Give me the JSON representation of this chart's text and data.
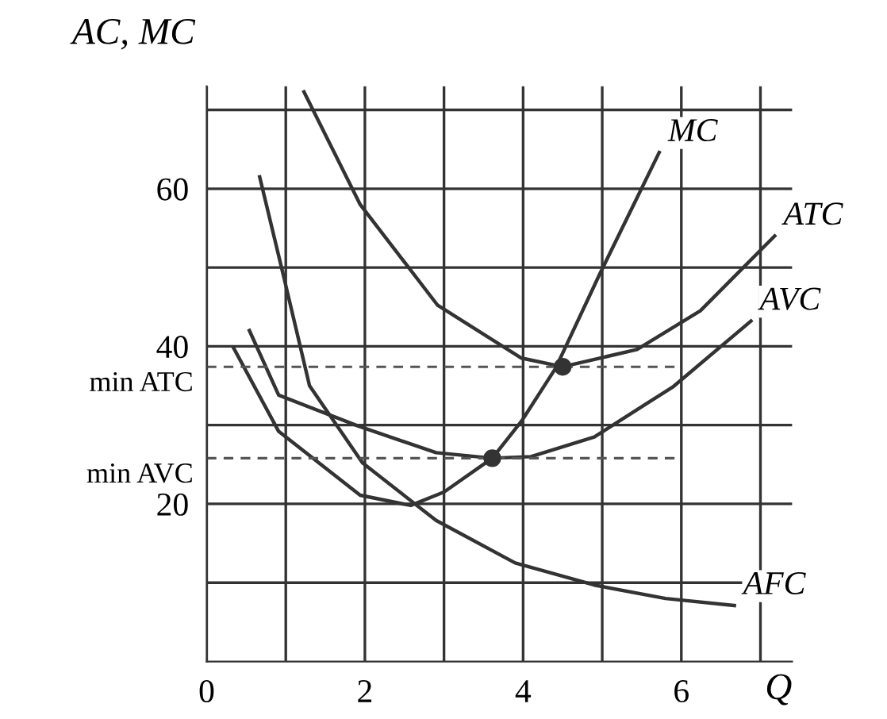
{
  "chart_data": {
    "type": "line",
    "ylabel": "AC, MC",
    "xlabel": "Q",
    "xlim": [
      0,
      7.4
    ],
    "ylim": [
      0,
      73
    ],
    "xticks": [
      0,
      {
        "value": 1,
        "label": null
      },
      2,
      {
        "value": 3,
        "label": null
      },
      4,
      {
        "value": 5,
        "label": null
      },
      6,
      {
        "value": 7,
        "label": null
      }
    ],
    "yticks": [
      {
        "value": 10,
        "label": null
      },
      20,
      {
        "value": 30,
        "label": null
      },
      40,
      {
        "value": 50,
        "label": null
      },
      60,
      {
        "value": 70,
        "label": null
      }
    ],
    "grid": true,
    "legend": false,
    "marker": "none",
    "line_style": "solid",
    "series": [
      {
        "name": "MC",
        "color": "#333333",
        "x": [
          0.34,
          0.91,
          1.94,
          2.58,
          3.0,
          3.61,
          3.98,
          4.41,
          4.97,
          5.72
        ],
        "values": [
          39.8,
          29.2,
          21.1,
          19.8,
          21.5,
          25.8,
          30.5,
          37.2,
          49.2,
          64.6
        ]
      },
      {
        "name": "ATC",
        "color": "#333333",
        "x": [
          1.23,
          1.94,
          2.92,
          3.98,
          4.5,
          5.44,
          6.24,
          7.18
        ],
        "values": [
          72.3,
          58,
          45.2,
          38.5,
          37.4,
          39.6,
          44.5,
          54
        ]
      },
      {
        "name": "AVC",
        "color": "#333333",
        "x": [
          0.54,
          0.91,
          1.91,
          2.9,
          3.61,
          4.1,
          4.9,
          5.9,
          6.88
        ],
        "values": [
          42,
          33.8,
          29.9,
          26.5,
          25.8,
          26,
          28.5,
          34.9,
          43.2
        ]
      },
      {
        "name": "AFC",
        "color": "#333333",
        "x": [
          0.67,
          0.97,
          1.3,
          1.97,
          2.9,
          3.9,
          4.9,
          5.8,
          6.67
        ],
        "values": [
          61.5,
          49,
          35,
          25.2,
          17.9,
          12.5,
          9.7,
          8.0,
          7.1
        ]
      },
      {
        "type": "scatter",
        "marker": "circle",
        "color": "#333333",
        "x": [
          3.61,
          4.5
        ],
        "values": [
          25.8,
          37.4
        ]
      }
    ],
    "ref_lines": [
      {
        "axis": "y",
        "value": 37.4,
        "label": "min ATC",
        "line_style": "dashed",
        "color": "#555555"
      },
      {
        "axis": "y",
        "value": 25.8,
        "label": "min AVC",
        "line_style": "dashed",
        "color": "#555555"
      }
    ]
  }
}
